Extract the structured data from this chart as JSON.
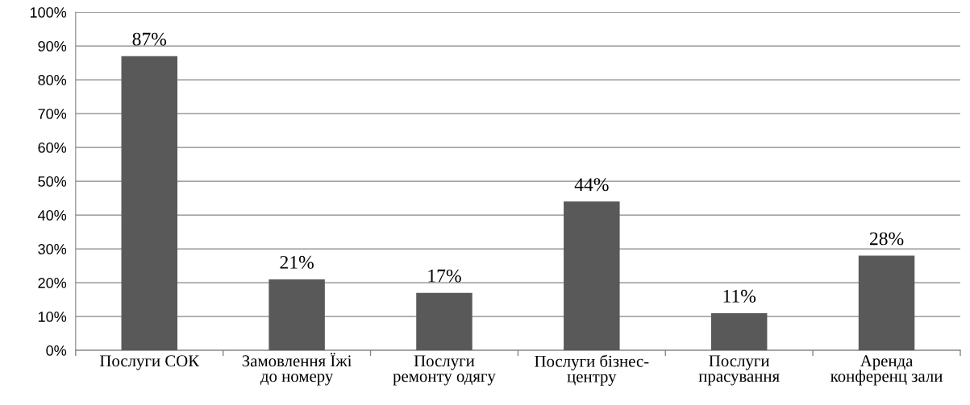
{
  "chart_data": {
    "type": "bar",
    "categories": [
      "Послуги СОК",
      "Замовлення Їжі\nдо номеру",
      "Послуги\nремонту одягу",
      "Послуги бізнес-\nцентру",
      "Послуги\nпрасування",
      "Аренда\nконференц зали"
    ],
    "values": [
      87,
      21,
      17,
      44,
      11,
      28
    ],
    "value_labels": [
      "87%",
      "21%",
      "17%",
      "44%",
      "11%",
      "28%"
    ],
    "color": "#595959",
    "ylim": [
      0,
      100
    ],
    "yticks": [
      {
        "value": 0,
        "label": "0%"
      },
      {
        "value": 10,
        "label": "10%"
      },
      {
        "value": 20,
        "label": "20%"
      },
      {
        "value": 30,
        "label": "30%"
      },
      {
        "value": 40,
        "label": "40%"
      },
      {
        "value": 50,
        "label": "50%"
      },
      {
        "value": 60,
        "label": "60%"
      },
      {
        "value": 70,
        "label": "70%"
      },
      {
        "value": 80,
        "label": "80%"
      },
      {
        "value": 90,
        "label": "90%"
      },
      {
        "value": 100,
        "label": "100%"
      }
    ],
    "grid": "y"
  }
}
